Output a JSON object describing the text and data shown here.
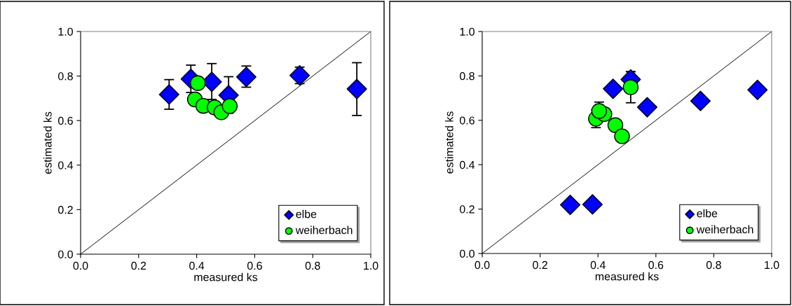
{
  "chart_data": [
    {
      "type": "scatter",
      "xlabel": "measured ks",
      "ylabel": "estimated ks",
      "xlim": [
        0,
        1
      ],
      "ylim": [
        0,
        1
      ],
      "xticks": [
        {
          "value": 0,
          "label": "0.0"
        },
        {
          "value": 0.2,
          "label": "0.2"
        },
        {
          "value": 0.4,
          "label": "0.4"
        },
        {
          "value": 0.6,
          "label": "0.6"
        },
        {
          "value": 0.8,
          "label": "0.8"
        },
        {
          "value": 1,
          "label": "1.0"
        }
      ],
      "yticks": [
        {
          "value": 0,
          "label": "0.0"
        },
        {
          "value": 0.2,
          "label": "0.2"
        },
        {
          "value": 0.4,
          "label": "0.4"
        },
        {
          "value": 0.6,
          "label": "0.6"
        },
        {
          "value": 0.8,
          "label": "0.8"
        },
        {
          "value": 1,
          "label": "1.0"
        }
      ],
      "grid": false,
      "legend": "bottom right",
      "series": [
        {
          "type": "line",
          "color": "#000000",
          "x": [
            0,
            1
          ],
          "values": [
            0,
            1
          ],
          "marker": "none"
        },
        {
          "name": "elbe",
          "color": "#0000ff",
          "marker": "diamond",
          "x": [
            0.305,
            0.38,
            0.452,
            0.51,
            0.571,
            0.755,
            0.952
          ],
          "values": [
            0.717,
            0.787,
            0.774,
            0.714,
            0.796,
            0.803,
            0.742
          ],
          "errors": [
            [
              0.651,
              0.784
            ],
            [
              0.726,
              0.849
            ],
            [
              0.695,
              0.856
            ],
            [
              0.633,
              0.797
            ],
            [
              0.75,
              0.845
            ],
            [
              0.766,
              0.84
            ],
            [
              0.623,
              0.86
            ]
          ]
        },
        {
          "name": "weiherbach",
          "color": "#00ff00",
          "marker": "circle",
          "x": [
            0.404,
            0.394,
            0.423,
            0.462,
            0.485,
            0.514
          ],
          "values": [
            0.768,
            0.695,
            0.666,
            0.659,
            0.637,
            0.665
          ]
        }
      ]
    },
    {
      "type": "scatter",
      "xlabel": "measured ks",
      "ylabel": "estimated ks",
      "xlim": [
        0,
        1
      ],
      "ylim": [
        0,
        1
      ],
      "xticks": [
        {
          "value": 0,
          "label": "0.0"
        },
        {
          "value": 0.2,
          "label": "0.2"
        },
        {
          "value": 0.4,
          "label": "0.4"
        },
        {
          "value": 0.6,
          "label": "0.6"
        },
        {
          "value": 0.8,
          "label": "0.8"
        },
        {
          "value": 1,
          "label": "1.0"
        }
      ],
      "yticks": [
        {
          "value": 0,
          "label": "0.0"
        },
        {
          "value": 0.2,
          "label": "0.2"
        },
        {
          "value": 0.4,
          "label": "0.4"
        },
        {
          "value": 0.6,
          "label": "0.6"
        },
        {
          "value": 0.8,
          "label": "0.8"
        },
        {
          "value": 1,
          "label": "1.0"
        }
      ],
      "grid": false,
      "legend": "bottom right",
      "series": [
        {
          "type": "line",
          "color": "#000000",
          "x": [
            0,
            1
          ],
          "values": [
            0,
            1
          ],
          "marker": "none"
        },
        {
          "name": "elbe",
          "color": "#0000ff",
          "marker": "diamond",
          "x": [
            0.304,
            0.381,
            0.452,
            0.513,
            0.57,
            0.754,
            0.951
          ],
          "values": [
            0.219,
            0.221,
            0.742,
            0.784,
            0.659,
            0.687,
            0.737
          ],
          "errors": [
            null,
            null,
            null,
            0.035,
            null,
            null,
            null
          ]
        },
        {
          "name": "weiherbach",
          "color": "#00ff00",
          "marker": "circle",
          "x": [
            0.393,
            0.422,
            0.46,
            0.483,
            0.513,
            0.404
          ],
          "values": [
            0.607,
            0.628,
            0.578,
            0.528,
            0.749,
            0.642
          ],
          "errors": [
            0.04,
            null,
            null,
            null,
            0.07,
            0.04
          ]
        }
      ]
    }
  ]
}
